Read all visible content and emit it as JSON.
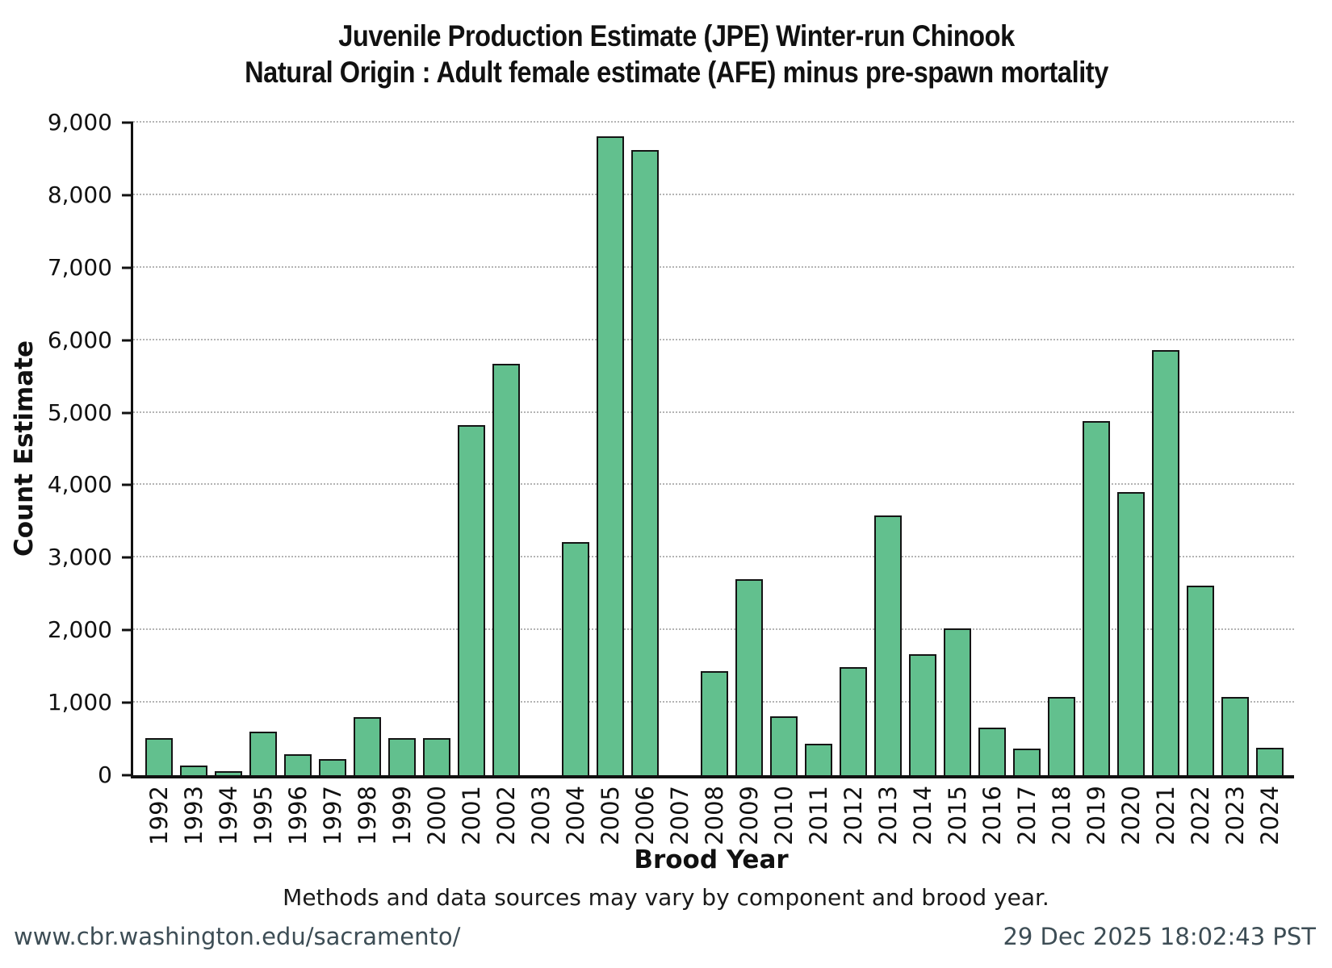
{
  "title": {
    "line1": "Juvenile Production Estimate (JPE) Winter-run Chinook",
    "line2": "Natural Origin : Adult female estimate (AFE) minus pre-spawn mortality"
  },
  "caption": "Methods and data sources may vary by component and brood year.",
  "footer": {
    "url": "www.cbr.washington.edu/sacramento/",
    "timestamp": "29 Dec 2025 18:02:43 PST"
  },
  "colors": {
    "bar_fill": "#62c08e",
    "bar_border": "#141414",
    "grid": "#b4b4b4",
    "axis": "#111111",
    "footer_text": "#3d4d55"
  },
  "chart_data": {
    "type": "bar",
    "title": "Juvenile Production Estimate (JPE) Winter-run Chinook — Natural Origin : Adult female estimate (AFE) minus pre-spawn mortality",
    "xlabel": "Brood Year",
    "ylabel": "Count Estimate",
    "ylim": [
      0,
      9000
    ],
    "grid": "horizontal-dotted",
    "legend": "none",
    "categories": [
      1992,
      1993,
      1994,
      1995,
      1996,
      1997,
      1998,
      1999,
      2000,
      2001,
      2002,
      2003,
      2004,
      2005,
      2006,
      2007,
      2008,
      2009,
      2010,
      2011,
      2012,
      2013,
      2014,
      2015,
      2016,
      2017,
      2018,
      2019,
      2020,
      2021,
      2022,
      2023,
      2024
    ],
    "values": [
      510,
      130,
      60,
      600,
      290,
      220,
      800,
      510,
      510,
      4830,
      5670,
      0,
      3220,
      8810,
      8620,
      0,
      1440,
      2700,
      810,
      430,
      1490,
      3580,
      1670,
      2030,
      660,
      370,
      1080,
      4880,
      3910,
      5860,
      2620,
      1080,
      380
    ],
    "zero_value_years": [
      2003,
      2007
    ],
    "yticks": [
      {
        "value": 0,
        "label": "0"
      },
      {
        "value": 1000,
        "label": "1,000"
      },
      {
        "value": 2000,
        "label": "2,000"
      },
      {
        "value": 3000,
        "label": "3,000"
      },
      {
        "value": 4000,
        "label": "4,000"
      },
      {
        "value": 5000,
        "label": "5,000"
      },
      {
        "value": 6000,
        "label": "6,000"
      },
      {
        "value": 7000,
        "label": "7,000"
      },
      {
        "value": 8000,
        "label": "8,000"
      },
      {
        "value": 9000,
        "label": "9,000"
      }
    ]
  }
}
